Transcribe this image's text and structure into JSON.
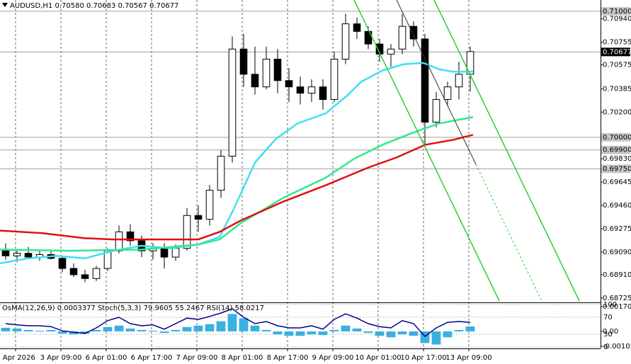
{
  "chart_data": [
    {
      "type": "candlestick",
      "title": "AUDUSD,H1 0.70580 0.70683 0.70567 0.70677",
      "x": [
        1.5,
        5.5,
        9.5,
        13.5,
        17.5,
        21.5,
        25.5,
        29.5,
        33.5,
        37.5,
        41.5,
        45.5,
        49.5,
        53.5,
        57.5,
        61.5,
        65.5,
        69.5,
        73.5,
        77.5,
        81.5,
        85.5,
        89.5,
        93.5,
        97.5,
        101.5,
        105.5,
        109.5,
        113.5,
        117.5,
        121.5,
        125.5,
        129.5,
        133.5,
        137.5,
        141.5,
        145.5,
        149.5,
        153.5,
        157.5,
        161.5,
        165.5
      ],
      "open": [
        0.691,
        0.6906,
        0.6908,
        0.6905,
        0.6907,
        0.6904,
        0.6896,
        0.6891,
        0.6888,
        0.6896,
        0.691,
        0.6925,
        0.6918,
        0.691,
        0.6912,
        0.6905,
        0.6912,
        0.6938,
        0.6935,
        0.6958,
        0.6985,
        0.707,
        0.705,
        0.704,
        0.7062,
        0.7045,
        0.704,
        0.7035,
        0.704,
        0.703,
        0.7062,
        0.709,
        0.7084,
        0.7074,
        0.7066,
        0.707,
        0.7088,
        0.7078,
        0.7012,
        0.703,
        0.704,
        0.705
      ],
      "high": [
        0.6916,
        0.6911,
        0.6913,
        0.691,
        0.691,
        0.6906,
        0.69,
        0.6895,
        0.6898,
        0.6912,
        0.693,
        0.6931,
        0.6922,
        0.6916,
        0.6916,
        0.6915,
        0.6944,
        0.6946,
        0.6962,
        0.699,
        0.708,
        0.7082,
        0.7072,
        0.7072,
        0.707,
        0.7055,
        0.7048,
        0.7046,
        0.7046,
        0.7068,
        0.7098,
        0.7095,
        0.7088,
        0.7078,
        0.7074,
        0.7098,
        0.7092,
        0.7082,
        0.7036,
        0.7044,
        0.706,
        0.7072
      ],
      "low": [
        0.6903,
        0.6901,
        0.6904,
        0.6902,
        0.6903,
        0.6893,
        0.6889,
        0.6885,
        0.6886,
        0.6894,
        0.6908,
        0.6914,
        0.6905,
        0.6903,
        0.6896,
        0.6902,
        0.691,
        0.6925,
        0.693,
        0.6952,
        0.698,
        0.704,
        0.7034,
        0.7038,
        0.7035,
        0.7028,
        0.7026,
        0.7028,
        0.7022,
        0.7028,
        0.7058,
        0.7078,
        0.707,
        0.706,
        0.7056,
        0.7066,
        0.7072,
        0.6992,
        0.7008,
        0.7026,
        0.703,
        0.7036
      ],
      "close": [
        0.6906,
        0.6908,
        0.6905,
        0.6907,
        0.6904,
        0.6896,
        0.6891,
        0.6888,
        0.6896,
        0.691,
        0.6925,
        0.6918,
        0.691,
        0.6912,
        0.6905,
        0.6912,
        0.6938,
        0.6935,
        0.6958,
        0.6985,
        0.707,
        0.705,
        0.704,
        0.7062,
        0.7045,
        0.704,
        0.7035,
        0.704,
        0.703,
        0.7062,
        0.709,
        0.7084,
        0.7074,
        0.7066,
        0.707,
        0.7088,
        0.7078,
        0.7012,
        0.703,
        0.704,
        0.705,
        0.7068
      ],
      "up_color": "#ffffff",
      "down_color": "#000000",
      "series": [
        {
          "color": "#40e0f0",
          "x": [
            -0.5,
            9.5,
            19.5,
            29.5,
            39.5,
            49.5,
            59.5,
            69.5,
            77,
            82,
            89.5,
            97,
            104.5,
            114.5,
            122,
            127,
            134.5,
            142,
            149,
            154.5,
            159.5,
            166.5
          ],
          "values": [
            0.69,
            0.6904,
            0.6906,
            0.6904,
            0.691,
            0.6914,
            0.6912,
            0.6915,
            0.6921,
            0.6943,
            0.698,
            0.6999,
            0.7011,
            0.7019,
            0.7033,
            0.7044,
            0.7053,
            0.7058,
            0.7059,
            0.7054,
            0.7052,
            0.7052
          ]
        },
        {
          "color": "#30e890",
          "x": [
            -0.5,
            24.5,
            49.5,
            69.5,
            77,
            84.5,
            99.5,
            114.5,
            124.5,
            134.5,
            144.5,
            154.5,
            166.5
          ],
          "values": [
            0.6911,
            0.691,
            0.6911,
            0.6915,
            0.6919,
            0.6932,
            0.6952,
            0.6968,
            0.6983,
            0.6994,
            0.7003,
            0.7011,
            0.7016
          ]
        },
        {
          "color": "#e01010",
          "x": [
            -0.5,
            14.5,
            29.5,
            39.5,
            54.5,
            69.5,
            77,
            84.5,
            99.5,
            114.5,
            129.5,
            139.5,
            149.5,
            159.5,
            166.5
          ],
          "values": [
            0.6926,
            0.6924,
            0.692,
            0.6919,
            0.6919,
            0.6919,
            0.6925,
            0.6934,
            0.6949,
            0.6962,
            0.6976,
            0.6984,
            0.6994,
            0.6998,
            0.7002
          ]
        }
      ],
      "xlim": [
        -0.5,
        211.5
      ],
      "xticks": [
        {
          "value": 5,
          "label": "2 Apr 2026"
        },
        {
          "value": 21,
          "label": "3 Apr 09:00"
        },
        {
          "value": 37,
          "label": "6 Apr 01:00"
        },
        {
          "value": 53,
          "label": "6 Apr 17:00"
        },
        {
          "value": 69,
          "label": "7 Apr 09:00"
        },
        {
          "value": 85,
          "label": "8 Apr 01:00"
        },
        {
          "value": 101,
          "label": "8 Apr 17:00"
        },
        {
          "value": 117,
          "label": "9 Apr 09:00"
        },
        {
          "value": 133,
          "label": "10 Apr 01:00"
        },
        {
          "value": 149,
          "label": "10 Apr 17:00"
        },
        {
          "value": 165,
          "label": "13 Apr 09:00"
        }
      ],
      "ylim": [
        0.68702,
        0.71089
      ],
      "yticks": [
        {
          "value": 0.7094,
          "label": "0.70940"
        },
        {
          "value": 0.70755,
          "label": "0.70755"
        },
        {
          "value": 0.70575,
          "label": "0.70575"
        },
        {
          "value": 0.70385,
          "label": "0.70385"
        },
        {
          "value": 0.702,
          "label": "0.70200"
        },
        {
          "value": 0.6983,
          "label": "0.69830"
        },
        {
          "value": 0.69645,
          "label": "0.69645"
        },
        {
          "value": 0.6946,
          "label": "0.69460"
        },
        {
          "value": 0.69275,
          "label": "0.69275"
        },
        {
          "value": 0.6909,
          "label": "0.69090"
        },
        {
          "value": 0.6891,
          "label": "0.68910"
        },
        {
          "value": 0.68725,
          "label": "0.68725"
        }
      ],
      "levels": [
        {
          "value": 0.71,
          "label": "0.71000"
        },
        {
          "value": 0.7,
          "label": "0.70000"
        },
        {
          "value": 0.699,
          "label": "0.69900"
        },
        {
          "value": 0.6975,
          "label": "0.69750"
        }
      ],
      "current": {
        "value": 0.70677,
        "label": "0.70677"
      },
      "grid": true
    },
    {
      "type": "bar",
      "title": "OsMA(12,26,9) 0.0003377 Stoch(5,3,3) 79.9605 55.2467 RSI(14) 58.0217",
      "x": [
        1.5,
        5.5,
        9.5,
        13.5,
        17.5,
        21.5,
        25.5,
        29.5,
        33.5,
        37.5,
        41.5,
        45.5,
        49.5,
        53.5,
        57.5,
        61.5,
        65.5,
        69.5,
        73.5,
        77.5,
        81.5,
        85.5,
        89.5,
        93.5,
        97.5,
        101.5,
        105.5,
        109.5,
        113.5,
        117.5,
        121.5,
        125.5,
        129.5,
        133.5,
        137.5,
        141.5,
        145.5,
        149.5,
        153.5,
        157.5,
        161.5,
        165.5
      ],
      "values": [
        0.00025,
        0.0002,
        0.0001,
        5e-05,
        0.0001,
        -0.00015,
        -0.0002,
        -0.00015,
        0.0001,
        0.0003,
        0.0004,
        0.0002,
        0.0001,
        5e-05,
        -0.0001,
        0.0001,
        0.0003,
        0.0004,
        0.0005,
        0.0007,
        0.0012,
        0.0009,
        0.0004,
        0.0001,
        -0.0002,
        -0.0003,
        -0.0003,
        -0.0002,
        -0.00025,
        0.0001,
        0.0004,
        0.0002,
        -0.0001,
        -0.0003,
        -0.0004,
        -0.0002,
        -0.0003,
        -0.0008,
        -0.0009,
        -0.0004,
        0.0001,
        0.00034
      ],
      "color": "#3ab0e0",
      "ylim": [
        -0.00102,
        0.001702
      ],
      "yticks": [
        {
          "value": 0.001702,
          "label": "0.001702"
        },
        {
          "value": 0,
          "label": "0.00"
        },
        {
          "value": -0.00102,
          "label": "-0.001020"
        }
      ],
      "y2lim": [
        0,
        100
      ],
      "y2ticks": [
        100,
        70,
        30,
        0
      ],
      "series": [
        {
          "color": "#00008b",
          "axis": "y2",
          "values": [
            55,
            52,
            50,
            50,
            48,
            38,
            35,
            32,
            45,
            62,
            70,
            55,
            50,
            52,
            42,
            55,
            68,
            65,
            72,
            80,
            90,
            70,
            55,
            60,
            50,
            45,
            45,
            50,
            42,
            65,
            78,
            68,
            55,
            48,
            45,
            62,
            55,
            25,
            45,
            58,
            60,
            58
          ]
        }
      ]
    }
  ]
}
